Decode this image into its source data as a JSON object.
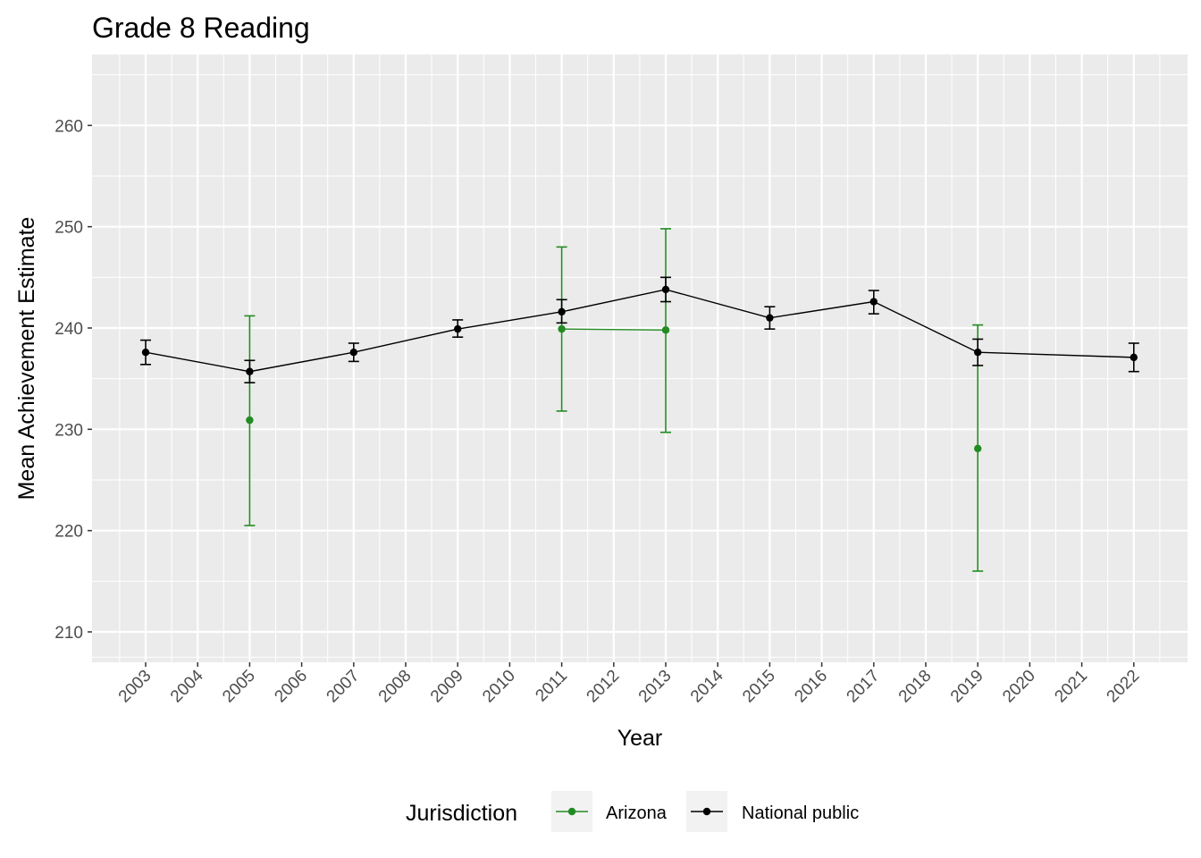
{
  "chart_data": {
    "type": "line",
    "title": "Grade 8 Reading",
    "xlabel": "Year",
    "ylabel": "Mean Achievement Estimate",
    "categories": [
      "2003",
      "2004",
      "2005",
      "2006",
      "2007",
      "2008",
      "2009",
      "2010",
      "2011",
      "2012",
      "2013",
      "2014",
      "2015",
      "2016",
      "2017",
      "2018",
      "2019",
      "2020",
      "2021",
      "2022"
    ],
    "ylim": [
      207,
      267
    ],
    "yticks": [
      210,
      220,
      230,
      240,
      250,
      260
    ],
    "legend": {
      "title": "Jurisdiction",
      "position": "bottom"
    },
    "series": [
      {
        "name": "National public",
        "color": "#000000",
        "points": [
          {
            "x": "2003",
            "y": 237.6,
            "lo": 236.4,
            "hi": 238.8
          },
          {
            "x": "2005",
            "y": 235.7,
            "lo": 234.6,
            "hi": 236.8
          },
          {
            "x": "2007",
            "y": 237.6,
            "lo": 236.7,
            "hi": 238.5
          },
          {
            "x": "2009",
            "y": 239.9,
            "lo": 239.1,
            "hi": 240.8
          },
          {
            "x": "2011",
            "y": 241.6,
            "lo": 240.5,
            "hi": 242.8
          },
          {
            "x": "2013",
            "y": 243.8,
            "lo": 242.6,
            "hi": 245.0
          },
          {
            "x": "2015",
            "y": 241.0,
            "lo": 239.9,
            "hi": 242.1
          },
          {
            "x": "2017",
            "y": 242.6,
            "lo": 241.4,
            "hi": 243.7
          },
          {
            "x": "2019",
            "y": 237.6,
            "lo": 236.3,
            "hi": 238.9
          },
          {
            "x": "2022",
            "y": 237.1,
            "lo": 235.7,
            "hi": 238.5
          }
        ],
        "line_segments": [
          [
            "2003",
            "2005",
            "2007",
            "2009",
            "2011",
            "2013",
            "2015",
            "2017",
            "2019",
            "2022"
          ]
        ]
      },
      {
        "name": "Arizona",
        "color": "#228B22",
        "points": [
          {
            "x": "2005",
            "y": 230.9,
            "lo": 220.5,
            "hi": 241.2
          },
          {
            "x": "2011",
            "y": 239.9,
            "lo": 231.8,
            "hi": 248.0
          },
          {
            "x": "2013",
            "y": 239.8,
            "lo": 229.7,
            "hi": 249.8
          },
          {
            "x": "2019",
            "y": 228.1,
            "lo": 216.0,
            "hi": 240.3
          }
        ],
        "line_segments": [
          [
            "2011",
            "2013"
          ]
        ]
      }
    ],
    "legend_order": [
      "Arizona",
      "National public"
    ]
  }
}
